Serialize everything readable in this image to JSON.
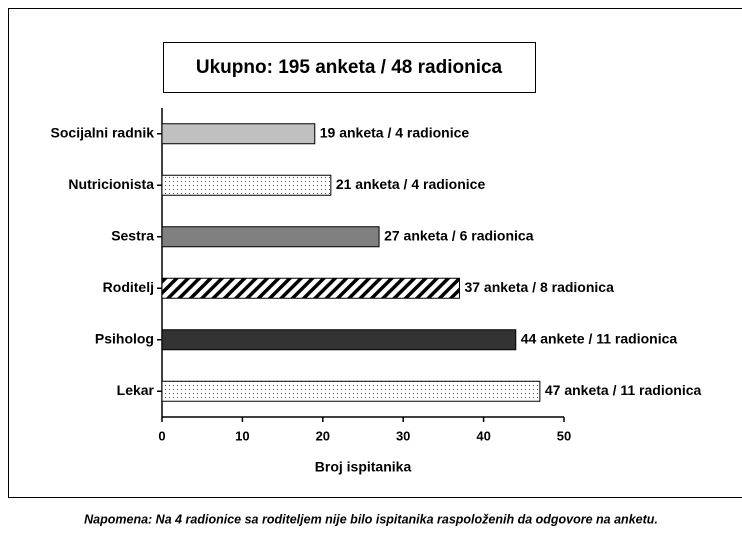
{
  "chart_data": {
    "type": "bar",
    "orientation": "horizontal",
    "title": "Ukupno:  195 anketa / 48 radionica",
    "categories": [
      "Socijalni radnik",
      "Nutricionista",
      "Sestra",
      "Roditelj",
      "Psiholog",
      "Lekar"
    ],
    "values": [
      19,
      21,
      27,
      37,
      44,
      47
    ],
    "value_labels": [
      "19 anketa / 4 radionice",
      "21 anketa / 4 radionice",
      "27 anketa / 6 radionica",
      "37 anketa / 8 radionica",
      "44 ankete / 11 radionica",
      "47 anketa / 11 radionica"
    ],
    "colors": [
      "#c0c0c0",
      "#ffffff",
      "#808080",
      "#ffffff",
      "#333333",
      "#ffffff"
    ],
    "patterns": [
      "solid",
      "dots",
      "solid",
      "hatch",
      "solid",
      "dots"
    ],
    "xlabel": "Broj ispitanika",
    "xlim": [
      0,
      50
    ],
    "xticks": [
      0,
      10,
      20,
      30,
      40,
      50
    ],
    "note": "Napomena:  Na 4 radionice sa roditeljem nije bilo ispitanika raspoloženih da odgovore na anketu."
  }
}
